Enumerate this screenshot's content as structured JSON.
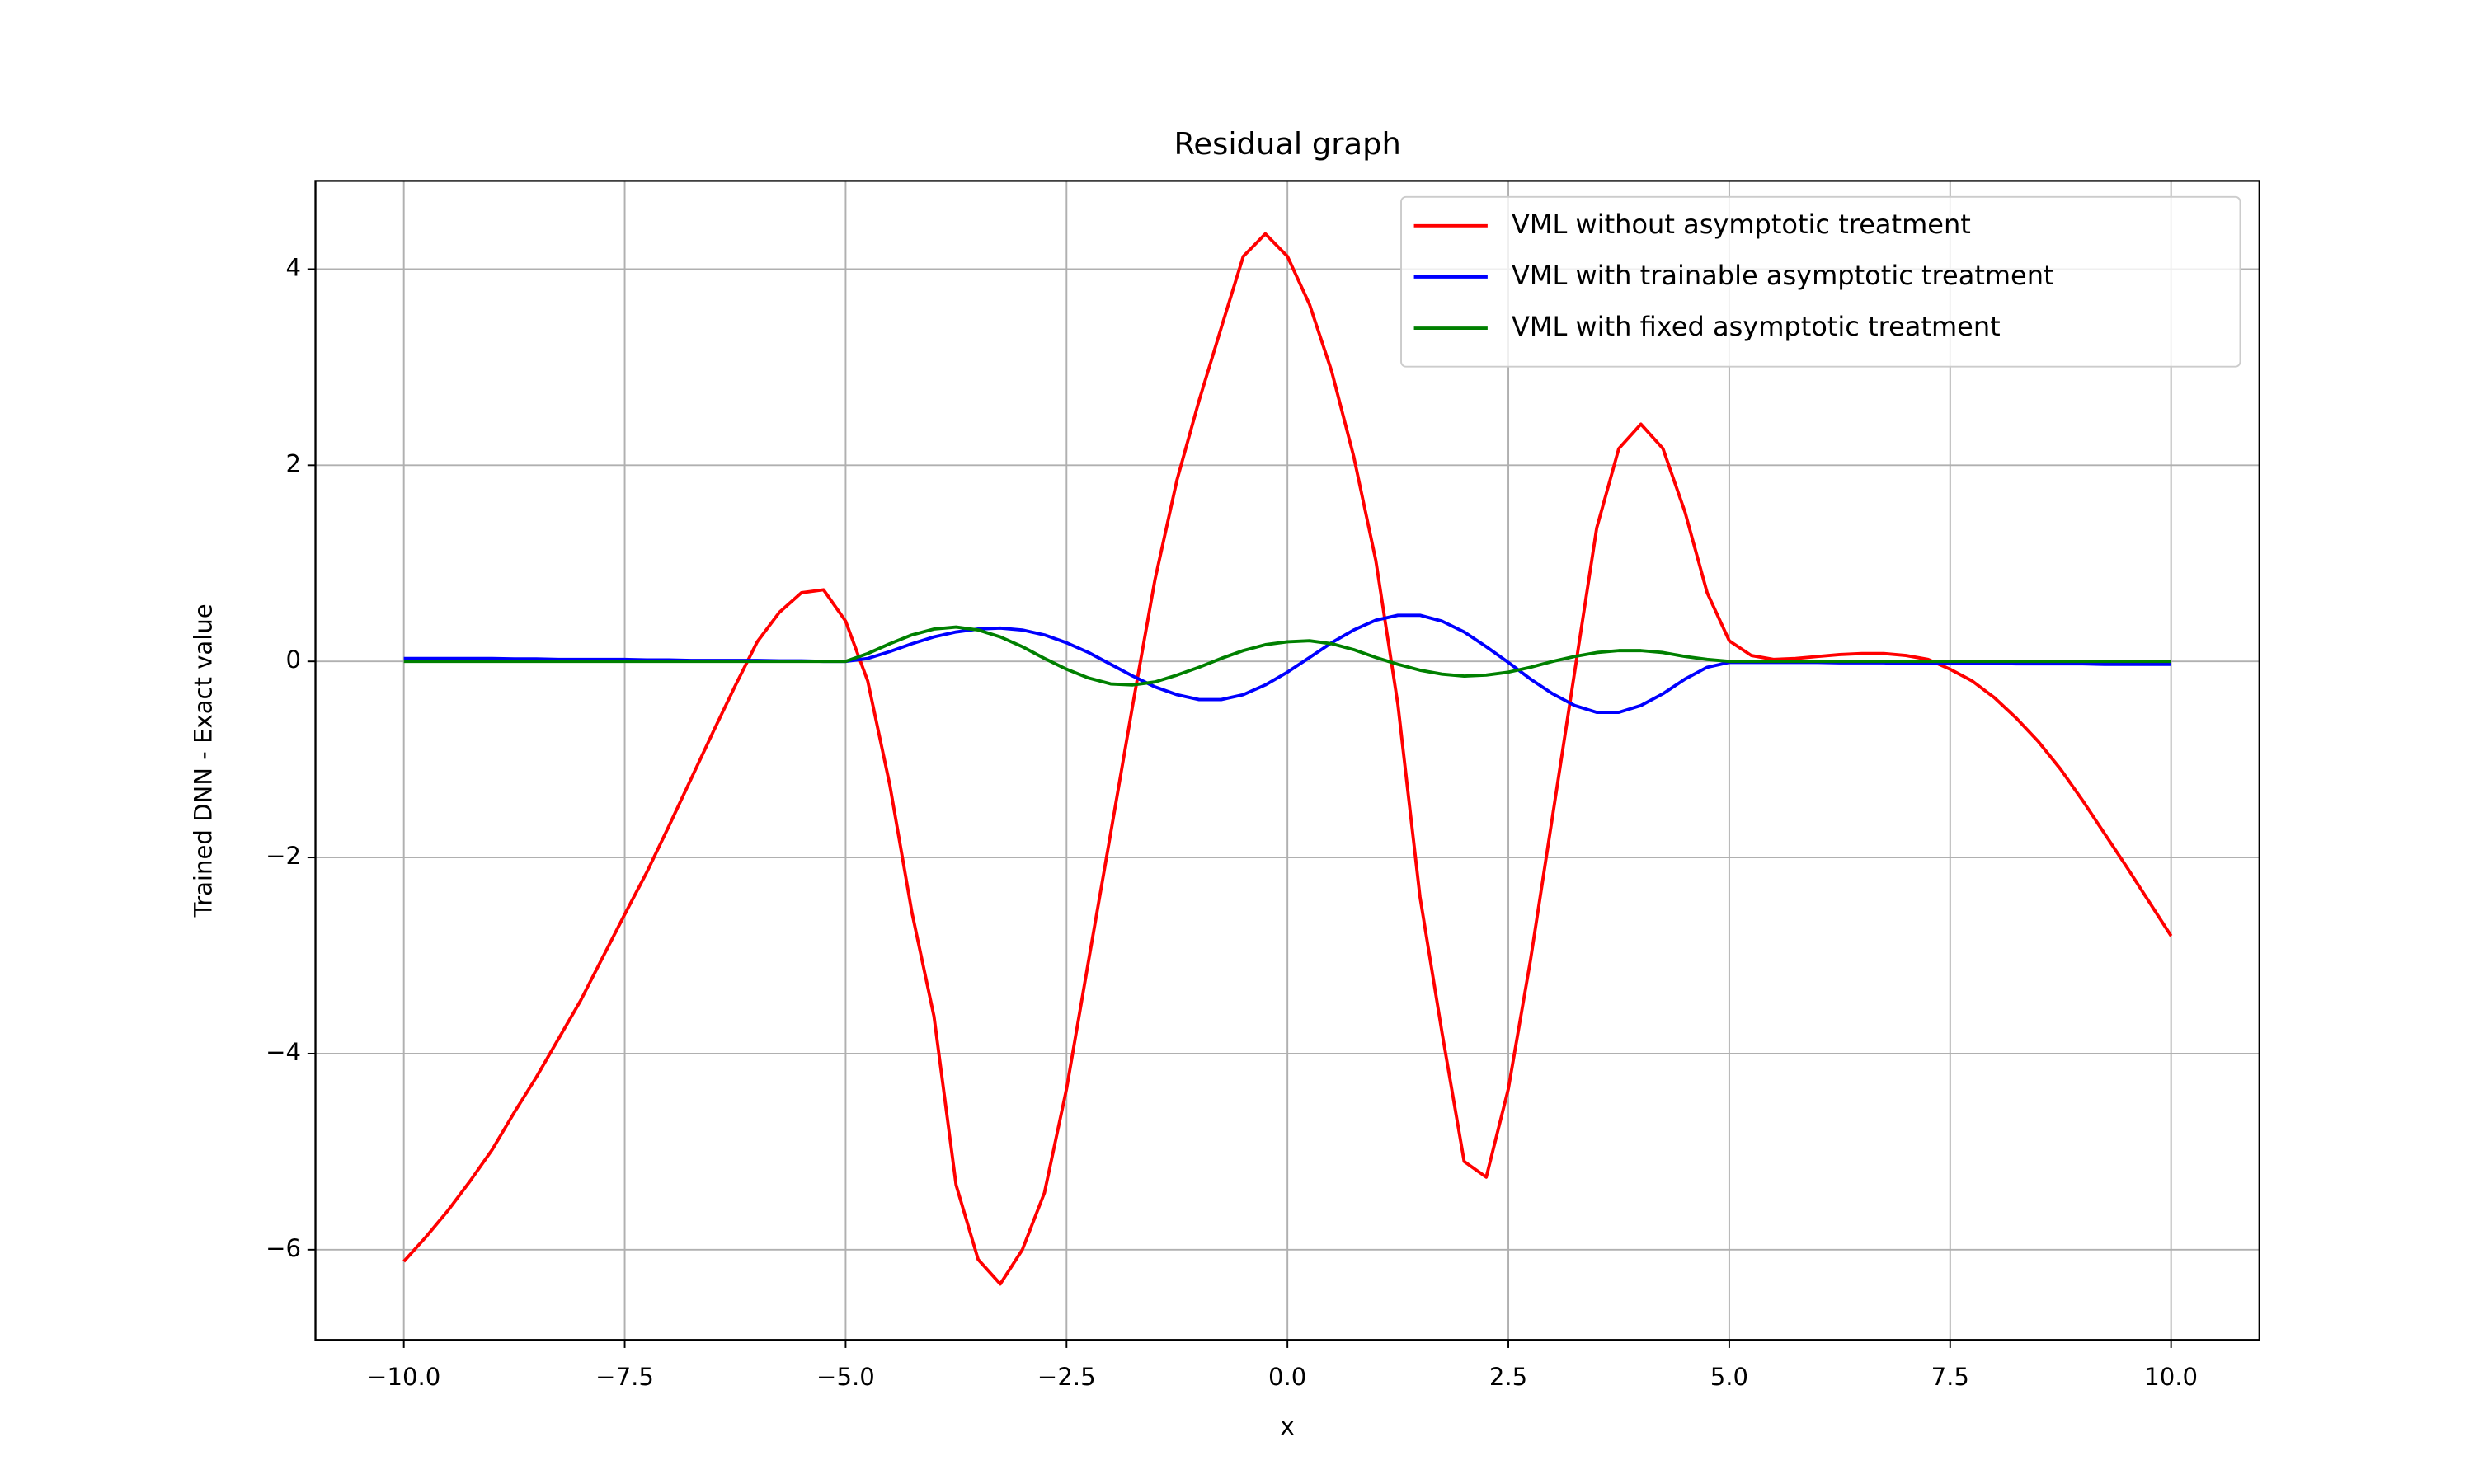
{
  "chart_data": {
    "type": "line",
    "title": "Residual graph",
    "xlabel": "x",
    "ylabel": "Trained DNN - Exact value",
    "x": [
      -10,
      -9.75,
      -9.5,
      -9.25,
      -9,
      -8.75,
      -8.5,
      -8.25,
      -8,
      -7.75,
      -7.5,
      -7.25,
      -7,
      -6.75,
      -6.5,
      -6.25,
      -6,
      -5.75,
      -5.5,
      -5.25,
      -5,
      -4.75,
      -4.5,
      -4.25,
      -4,
      -3.75,
      -3.5,
      -3.25,
      -3,
      -2.75,
      -2.5,
      -2.25,
      -2,
      -1.75,
      -1.5,
      -1.25,
      -1,
      -0.75,
      -0.5,
      -0.25,
      0,
      0.25,
      0.5,
      0.75,
      1,
      1.25,
      1.5,
      1.75,
      2,
      2.25,
      2.5,
      2.75,
      3,
      3.25,
      3.5,
      3.75,
      4,
      4.25,
      4.5,
      4.75,
      5,
      5.25,
      5.5,
      5.75,
      6,
      6.25,
      6.5,
      6.75,
      7,
      7.25,
      7.5,
      7.75,
      8,
      8.25,
      8.5,
      8.75,
      9,
      9.25,
      9.5,
      9.75,
      10
    ],
    "series": [
      {
        "name": "VML without asymptotic treatment",
        "color": "#ff0000",
        "values": [
          -6.12,
          -5.87,
          -5.6,
          -5.3,
          -4.98,
          -4.6,
          -4.24,
          -3.85,
          -3.46,
          -3.02,
          -2.58,
          -2.15,
          -1.68,
          -1.2,
          -0.72,
          -0.25,
          0.2,
          0.5,
          0.7,
          0.73,
          0.41,
          -0.2,
          -1.26,
          -2.56,
          -3.62,
          -5.34,
          -6.1,
          -6.35,
          -6.0,
          -5.42,
          -4.36,
          -3.05,
          -1.75,
          -0.44,
          0.83,
          1.85,
          2.66,
          3.4,
          4.13,
          4.36,
          4.13,
          3.64,
          2.96,
          2.09,
          1.03,
          -0.44,
          -2.4,
          -3.79,
          -5.1,
          -5.26,
          -4.36,
          -3.05,
          -1.58,
          -0.11,
          1.36,
          2.17,
          2.42,
          2.17,
          1.52,
          0.7,
          0.21,
          0.06,
          0.02,
          0.03,
          0.05,
          0.07,
          0.08,
          0.08,
          0.06,
          0.02,
          -0.08,
          -0.2,
          -0.37,
          -0.58,
          -0.82,
          -1.1,
          -1.42,
          -1.76,
          -2.1,
          -2.45,
          -2.8
        ]
      },
      {
        "name": "VML with trainable asymptotic treatment",
        "color": "#0000ff",
        "values": [
          0.03,
          0.03,
          0.03,
          0.03,
          0.03,
          0.025,
          0.025,
          0.02,
          0.02,
          0.02,
          0.02,
          0.015,
          0.015,
          0.01,
          0.01,
          0.01,
          0.01,
          0.005,
          0.005,
          0.0,
          0.0,
          0.03,
          0.1,
          0.18,
          0.25,
          0.3,
          0.33,
          0.34,
          0.32,
          0.27,
          0.19,
          0.09,
          -0.03,
          -0.15,
          -0.26,
          -0.34,
          -0.39,
          -0.39,
          -0.34,
          -0.24,
          -0.11,
          0.04,
          0.19,
          0.32,
          0.42,
          0.47,
          0.47,
          0.41,
          0.3,
          0.15,
          -0.01,
          -0.18,
          -0.33,
          -0.45,
          -0.52,
          -0.52,
          -0.45,
          -0.33,
          -0.18,
          -0.06,
          -0.01,
          -0.01,
          -0.01,
          -0.01,
          -0.01,
          -0.015,
          -0.015,
          -0.015,
          -0.02,
          -0.02,
          -0.02,
          -0.02,
          -0.02,
          -0.025,
          -0.025,
          -0.025,
          -0.025,
          -0.03,
          -0.03,
          -0.03,
          -0.03
        ]
      },
      {
        "name": "VML with fixed asymptotic treatment",
        "color": "#008000",
        "values": [
          0,
          0,
          0,
          0,
          0,
          0,
          0,
          0,
          0,
          0,
          0,
          0,
          0,
          0,
          0,
          0,
          0,
          0,
          0,
          0,
          0,
          0.08,
          0.18,
          0.27,
          0.33,
          0.35,
          0.32,
          0.25,
          0.15,
          0.03,
          -0.08,
          -0.17,
          -0.23,
          -0.24,
          -0.21,
          -0.14,
          -0.06,
          0.03,
          0.11,
          0.17,
          0.2,
          0.21,
          0.18,
          0.12,
          0.04,
          -0.03,
          -0.09,
          -0.13,
          -0.15,
          -0.14,
          -0.11,
          -0.06,
          0.0,
          0.05,
          0.09,
          0.11,
          0.11,
          0.09,
          0.05,
          0.02,
          0,
          0,
          0,
          0,
          0,
          0,
          0,
          0,
          0,
          0,
          0,
          0,
          0,
          0,
          0,
          0,
          0,
          0,
          0,
          0,
          0
        ]
      }
    ],
    "xlim": [
      -11,
      11
    ],
    "xticks": [
      {
        "value": -10,
        "label": "−10.0"
      },
      {
        "value": -7.5,
        "label": "−7.5"
      },
      {
        "value": -5,
        "label": "−5.0"
      },
      {
        "value": -2.5,
        "label": "−2.5"
      },
      {
        "value": 0,
        "label": "0.0"
      },
      {
        "value": 2.5,
        "label": "2.5"
      },
      {
        "value": 5,
        "label": "5.0"
      },
      {
        "value": 7.5,
        "label": "7.5"
      },
      {
        "value": 10,
        "label": "10.0"
      }
    ],
    "ylim": [
      -6.92,
      4.9
    ],
    "yticks": [
      {
        "value": -6,
        "label": "−6"
      },
      {
        "value": -4,
        "label": "−4"
      },
      {
        "value": -2,
        "label": "−2"
      },
      0,
      2,
      4
    ],
    "grid": true,
    "legend": "upper right"
  }
}
